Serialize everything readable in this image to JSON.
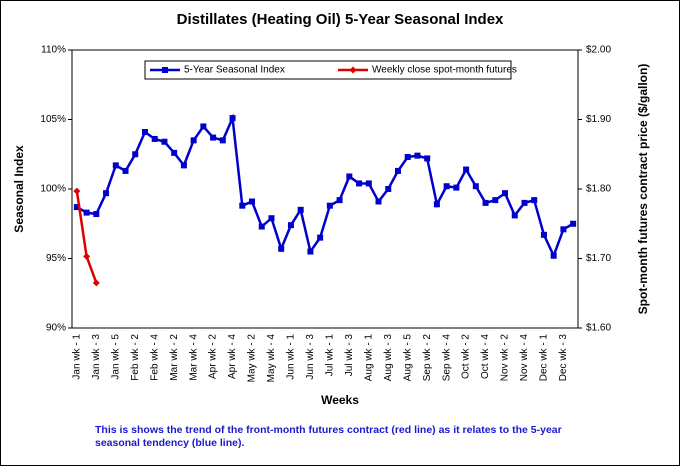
{
  "chart_data": {
    "type": "line",
    "title": "Distillates (Heating Oil)  5-Year Seasonal Index",
    "x_label": "Weeks",
    "y_label": "Seasonal Index",
    "y2_label": "Spot-month futures contract price ($/gallon)",
    "annotations": [
      "This is shows the trend of the front-month futures contract (red line) as it relates to the 5-year",
      "seasonal tendency (blue line)."
    ],
    "categories": [
      "Jan wk - 1",
      null,
      "Jan wk - 3",
      null,
      "Jan wk - 5",
      null,
      "Feb wk - 2",
      null,
      "Feb wk - 4",
      null,
      "Mar wk - 2",
      null,
      "Mar wk - 4",
      null,
      "Apr wk - 2",
      null,
      "Apr wk - 4",
      null,
      "May wk - 2",
      null,
      "May wk - 4",
      null,
      "Jun wk - 1",
      null,
      "Jun wk - 3",
      null,
      "Jul wk - 1",
      null,
      "Jul wk - 3",
      null,
      "Aug wk - 1",
      null,
      "Aug wk - 3",
      null,
      "Aug wk - 5",
      null,
      "Sep wk - 2",
      null,
      "Sep wk - 4",
      null,
      "Oct wk - 2",
      null,
      "Oct wk - 4",
      null,
      "Nov wk - 2",
      null,
      "Nov wk - 4",
      null,
      "Dec wk - 1",
      null,
      "Dec wk - 3",
      null
    ],
    "series": [
      {
        "name": "5-Year Seasonal Index",
        "color": "#0000cc",
        "marker": "square",
        "values": [
          98.7,
          98.3,
          98.2,
          99.7,
          101.7,
          101.3,
          102.5,
          104.1,
          103.6,
          103.4,
          102.6,
          101.7,
          103.5,
          104.5,
          103.7,
          103.5,
          105.1,
          98.8,
          99.1,
          97.3,
          97.9,
          95.7,
          97.4,
          98.5,
          95.5,
          96.5,
          98.8,
          99.2,
          100.9,
          100.4,
          100.4,
          99.1,
          100.0,
          101.3,
          102.3,
          102.4,
          102.2,
          98.9,
          100.2,
          100.1,
          101.4,
          100.2,
          99.0,
          99.2,
          99.7,
          98.1,
          99.0,
          99.2,
          96.7,
          95.2,
          97.1,
          97.5
        ]
      },
      {
        "name": "Weekly close spot-month futures",
        "color": "#dd0000",
        "marker": "diamond",
        "axis": "y2",
        "values": [
          1.797,
          1.703,
          1.665,
          null,
          null,
          null,
          null,
          null,
          null,
          null,
          null,
          null,
          null,
          null,
          null,
          null,
          null,
          null,
          null,
          null,
          null,
          null,
          null,
          null,
          null,
          null,
          null,
          null,
          null,
          null,
          null,
          null,
          null,
          null,
          null,
          null,
          null,
          null,
          null,
          null,
          null,
          null,
          null,
          null,
          null,
          null,
          null,
          null,
          null,
          null,
          null,
          null
        ]
      }
    ],
    "ylim": [
      90,
      110
    ],
    "yticks": [
      {
        "value": 90,
        "label": "90%"
      },
      {
        "value": 95,
        "label": "95%"
      },
      {
        "value": 100,
        "label": "100%"
      },
      {
        "value": 105,
        "label": "105%"
      },
      {
        "value": 110,
        "label": "110%"
      }
    ],
    "y2lim": [
      1.6,
      2.0
    ],
    "y2ticks": [
      {
        "value": 1.6,
        "label": "$1.60"
      },
      {
        "value": 1.7,
        "label": "$1.70"
      },
      {
        "value": 1.8,
        "label": "$1.80"
      },
      {
        "value": 1.9,
        "label": "$1.90"
      },
      {
        "value": 2.0,
        "label": "$2.00"
      }
    ],
    "grid": false,
    "legend": "top"
  }
}
